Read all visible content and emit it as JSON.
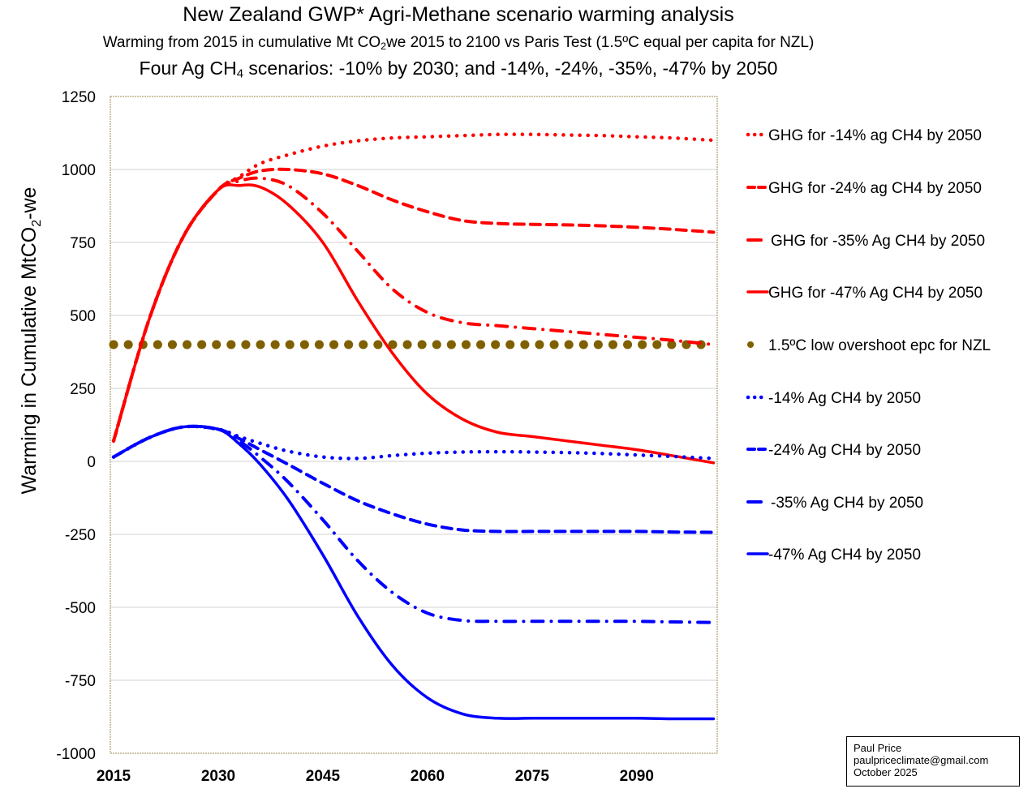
{
  "chart_data": {
    "type": "line",
    "title": "New Zealand GWP* Agri-Methane scenario warming analysis",
    "subtitle_parts": [
      "Warming from 2015 in cumulative Mt CO",
      "2",
      "we 2015 to 2100 vs Paris Test (1.5ºC equal per capita for NZL)"
    ],
    "subtitle2_parts": [
      "Four Ag CH",
      "4",
      " scenarios: -10% by 2030; and -14%, -24%, -35%, -47% by 2050"
    ],
    "xlabel": "",
    "ylabel_parts": [
      "Warming in Cumulative MtCO",
      "2",
      "-we"
    ],
    "xlim": [
      2015,
      2102
    ],
    "ylim": [
      -1000,
      1250
    ],
    "x_ticks": [
      2015,
      2030,
      2045,
      2060,
      2075,
      2090
    ],
    "y_ticks": [
      1250,
      1000,
      750,
      500,
      250,
      0,
      -250,
      -500,
      -750,
      -1000
    ],
    "grid": "horizontal",
    "legend_position": "right",
    "x": [
      2015,
      2020,
      2025,
      2030,
      2033,
      2036,
      2040,
      2045,
      2050,
      2055,
      2060,
      2065,
      2070,
      2075,
      2080,
      2085,
      2090,
      2095,
      2101
    ],
    "series": [
      {
        "name": "GHG for -14% ag CH4 by 2050",
        "color": "#ff0000",
        "style": "dotted",
        "values": [
          70,
          480,
          770,
          930,
          975,
          1020,
          1050,
          1080,
          1098,
          1108,
          1112,
          1116,
          1120,
          1120,
          1118,
          1116,
          1112,
          1108,
          1100
        ]
      },
      {
        "name": "GHG for -24% ag CH4 by 2050",
        "color": "#ff0000",
        "style": "dashed",
        "values": [
          70,
          480,
          770,
          930,
          970,
          995,
          1000,
          985,
          945,
          895,
          855,
          825,
          815,
          812,
          810,
          807,
          802,
          795,
          785
        ]
      },
      {
        "name": "GHG for -35% Ag CH4 by 2050",
        "color": "#ff0000",
        "style": "dashdot",
        "values": [
          70,
          480,
          770,
          930,
          960,
          970,
          945,
          850,
          720,
          590,
          510,
          475,
          465,
          455,
          445,
          435,
          425,
          415,
          400
        ]
      },
      {
        "name": "GHG for -47% Ag CH4 by 2050",
        "color": "#ff0000",
        "style": "solid",
        "values": [
          70,
          480,
          770,
          930,
          945,
          940,
          880,
          750,
          550,
          370,
          230,
          145,
          100,
          85,
          70,
          55,
          40,
          20,
          -5
        ]
      },
      {
        "name": "1.5ºC low overshoot epc for NZL",
        "color": "#7f6000",
        "style": "bigdots",
        "values": [
          400,
          400,
          400,
          400,
          400,
          400,
          400,
          400,
          400,
          400,
          400,
          400,
          400,
          400,
          400,
          400,
          400,
          400,
          400
        ]
      },
      {
        "name": "-14% Ag CH4 by 2050",
        "color": "#0000ff",
        "style": "dotted",
        "values": [
          15,
          80,
          118,
          110,
          85,
          62,
          35,
          15,
          10,
          20,
          28,
          32,
          33,
          32,
          30,
          27,
          22,
          17,
          10
        ]
      },
      {
        "name": "-24% Ag CH4 by 2050",
        "color": "#0000ff",
        "style": "dashed",
        "values": [
          15,
          80,
          118,
          110,
          78,
          40,
          -10,
          -75,
          -135,
          -180,
          -215,
          -235,
          -240,
          -240,
          -240,
          -240,
          -240,
          -242,
          -243
        ]
      },
      {
        "name": "-35% Ag CH4 by 2050",
        "color": "#0000ff",
        "style": "dashdot",
        "values": [
          15,
          80,
          118,
          110,
          70,
          15,
          -70,
          -200,
          -340,
          -450,
          -520,
          -545,
          -548,
          -548,
          -548,
          -548,
          -548,
          -550,
          -552
        ]
      },
      {
        "name": "-47% Ag CH4 by 2050",
        "color": "#0000ff",
        "style": "solid",
        "values": [
          15,
          80,
          118,
          110,
          60,
          -10,
          -130,
          -320,
          -530,
          -700,
          -810,
          -865,
          -880,
          -880,
          -880,
          -880,
          -880,
          -882,
          -882
        ]
      }
    ]
  },
  "credit": {
    "name": "Paul Price",
    "email": "paulpriceclimate@gmail.com",
    "date": "October 2025"
  }
}
